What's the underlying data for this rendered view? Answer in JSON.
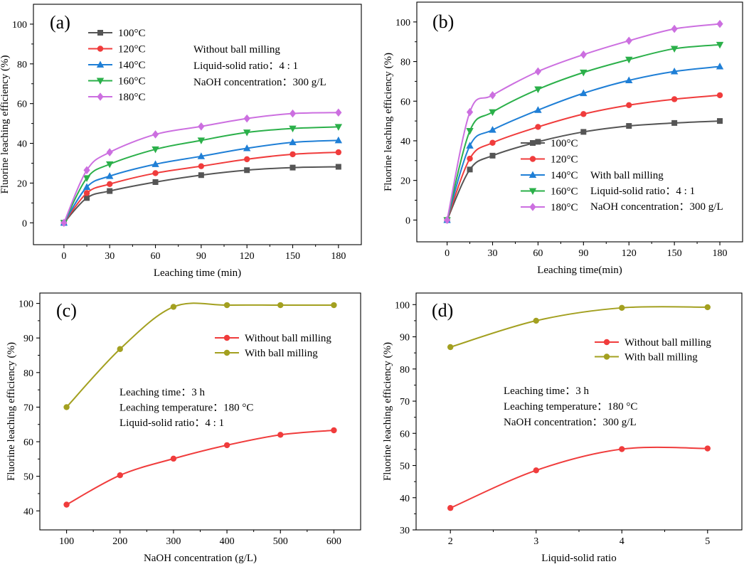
{
  "chart_data": [
    {
      "id": "a",
      "panel_label": "(a)",
      "type": "line",
      "xlabel": "Leaching time (min)",
      "ylabel": "Fluorine leaching efficiency (%)",
      "xlim": [
        -20,
        195
      ],
      "ylim": [
        -11,
        110
      ],
      "xticks": [
        0,
        30,
        60,
        90,
        120,
        150,
        180
      ],
      "yticks": [
        0,
        20,
        40,
        60,
        80,
        100
      ],
      "x": [
        0,
        15,
        30,
        60,
        90,
        120,
        150,
        180
      ],
      "series": [
        {
          "name": "100°C",
          "color": "#555555",
          "marker": "square",
          "values": [
            0,
            12.5,
            16,
            20.5,
            24,
            26.5,
            27.8,
            28.2
          ]
        },
        {
          "name": "120°C",
          "color": "#f03c3c",
          "marker": "circle",
          "values": [
            0,
            15,
            19.5,
            25,
            28.5,
            32,
            34.5,
            35.5
          ]
        },
        {
          "name": "140°C",
          "color": "#1f7fd6",
          "marker": "triangle-up",
          "values": [
            0,
            18,
            23.5,
            29.5,
            33.5,
            37.5,
            40.5,
            41.5
          ]
        },
        {
          "name": "160°C",
          "color": "#2bb04a",
          "marker": "triangle-down",
          "values": [
            0,
            22.5,
            29.5,
            37,
            41.5,
            45.5,
            47.5,
            48.3
          ]
        },
        {
          "name": "180°C",
          "color": "#cc6fe0",
          "marker": "diamond",
          "values": [
            0,
            26.5,
            35.5,
            44.5,
            48.5,
            52.5,
            55,
            55.5
          ]
        }
      ],
      "legend_position": "top-left",
      "annotations": [
        "Without ball milling",
        "Liquid-solid ratio：4 : 1",
        "NaOH concentration：300 g/L"
      ]
    },
    {
      "id": "b",
      "panel_label": "(b)",
      "type": "line",
      "xlabel": "Leaching time(min)",
      "ylabel": "Fluorine leaching efficiency (%)",
      "xlim": [
        -20,
        195
      ],
      "ylim": [
        -11,
        110
      ],
      "xticks": [
        0,
        30,
        60,
        90,
        120,
        150,
        180
      ],
      "yticks": [
        0,
        20,
        40,
        60,
        80,
        100
      ],
      "x": [
        0,
        15,
        30,
        60,
        90,
        120,
        150,
        180
      ],
      "series": [
        {
          "name": "100°C",
          "color": "#555555",
          "marker": "square",
          "values": [
            0,
            25.5,
            32.5,
            39.5,
            44.5,
            47.5,
            49,
            50
          ]
        },
        {
          "name": "120°C",
          "color": "#f03c3c",
          "marker": "circle",
          "values": [
            0,
            31,
            39,
            47,
            53.5,
            58,
            61,
            63
          ]
        },
        {
          "name": "140°C",
          "color": "#1f7fd6",
          "marker": "triangle-up",
          "values": [
            0,
            37.5,
            45.5,
            55.5,
            64,
            70.5,
            75,
            77.5
          ]
        },
        {
          "name": "160°C",
          "color": "#2bb04a",
          "marker": "triangle-down",
          "values": [
            0,
            45,
            54.5,
            66,
            74.5,
            81,
            86.5,
            88.5
          ]
        },
        {
          "name": "180°C",
          "color": "#cc6fe0",
          "marker": "diamond",
          "values": [
            0,
            54.5,
            63,
            75,
            83.5,
            90.5,
            96.5,
            99
          ]
        }
      ],
      "legend_position": "bottom-center",
      "annotations": [
        "With ball milling",
        "Liquid-solid ratio：4 : 1",
        "NaOH concentration：300 g/L"
      ]
    },
    {
      "id": "c",
      "panel_label": "(c)",
      "type": "line",
      "xlabel": "NaOH concentration (g/L)",
      "ylabel": "Fluorine leaching efficiency (%)",
      "xlim": [
        50,
        650
      ],
      "ylim": [
        34.5,
        103
      ],
      "xticks": [
        100,
        200,
        300,
        400,
        500,
        600
      ],
      "yticks": [
        40,
        50,
        60,
        70,
        80,
        90,
        100
      ],
      "x": [
        100,
        200,
        300,
        400,
        500,
        600
      ],
      "series": [
        {
          "name": "Without ball milling",
          "color": "#f03c3c",
          "marker": "circle",
          "values": [
            41.8,
            50.3,
            55.1,
            59,
            62,
            63.3
          ]
        },
        {
          "name": "With ball milling",
          "color": "#a3a020",
          "marker": "circle",
          "values": [
            70,
            86.8,
            99,
            99.5,
            99.5,
            99.5
          ]
        }
      ],
      "legend_position": "top-right",
      "annotations": [
        "Leaching time：3 h",
        "Leaching temperature：180 °C",
        "Liquid-solid ratio：4 : 1"
      ]
    },
    {
      "id": "d",
      "panel_label": "(d)",
      "type": "line",
      "xlabel": "Liquid-solid ratio",
      "ylabel": "Fluorine leaching efficiency (%)",
      "xlim": [
        1.6,
        5.4
      ],
      "ylim": [
        30,
        103.6
      ],
      "xticks": [
        2,
        3,
        4,
        5
      ],
      "yticks": [
        30,
        40,
        50,
        60,
        70,
        80,
        90,
        100
      ],
      "x": [
        2,
        3,
        4,
        5
      ],
      "series": [
        {
          "name": "Without ball milling",
          "color": "#f03c3c",
          "marker": "circle",
          "values": [
            36.8,
            48.5,
            55.1,
            55.3
          ]
        },
        {
          "name": "With ball milling",
          "color": "#a3a020",
          "marker": "circle",
          "values": [
            86.8,
            95,
            99,
            99.2
          ]
        }
      ],
      "legend_position": "top-right",
      "annotations": [
        "Leaching time：3 h",
        "Leaching temperature：180 °C",
        "NaOH concentration：300 g/L"
      ]
    }
  ]
}
